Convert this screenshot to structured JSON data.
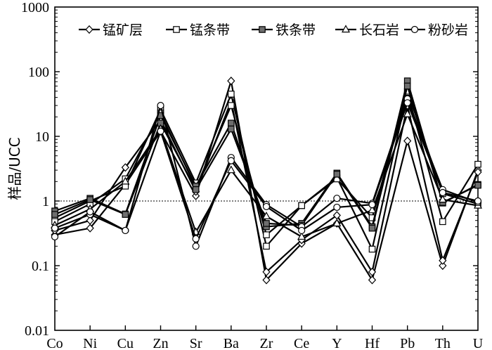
{
  "chart_data": {
    "type": "line",
    "title": "",
    "xlabel": "",
    "ylabel": "样品/UCC",
    "yscale": "log",
    "ylim": [
      0.01,
      1000
    ],
    "y_ticks": [
      "0.01",
      "0.1",
      "1",
      "10",
      "100",
      "1000"
    ],
    "reference_line": {
      "y": 1,
      "style": "dotted"
    },
    "categories": [
      "Co",
      "Ni",
      "Cu",
      "Zn",
      "Sr",
      "Ba",
      "Zr",
      "Ce",
      "Y",
      "Hf",
      "Pb",
      "Th",
      "U"
    ],
    "legend_placement": "top",
    "series": [
      {
        "name": "锰矿层",
        "marker": "diamond",
        "lines": [
          [
            0.3,
            0.38,
            1.8,
            12,
            1.2,
            72,
            0.06,
            0.22,
            0.45,
            0.06,
            8.5,
            0.1,
            3.0
          ],
          [
            0.35,
            0.5,
            3.3,
            18,
            1.4,
            35,
            0.08,
            0.25,
            0.6,
            0.08,
            30,
            0.12,
            2.8
          ]
        ]
      },
      {
        "name": "锰条带",
        "marker": "square-open",
        "lines": [
          [
            0.55,
            1.0,
            1.7,
            26,
            1.9,
            45,
            0.2,
            0.85,
            2.3,
            0.18,
            48,
            0.48,
            3.7
          ],
          [
            0.48,
            0.9,
            2.2,
            23,
            1.6,
            30,
            0.3,
            0.85,
            2.2,
            0.55,
            50,
            1.3,
            0.9
          ]
        ]
      },
      {
        "name": "铁条带",
        "marker": "square-filled",
        "lines": [
          [
            0.7,
            1.1,
            0.63,
            21,
            1.7,
            16,
            0.4,
            0.45,
            2.7,
            0.4,
            72,
            0.93,
            1.8
          ],
          [
            0.62,
            1.05,
            0.62,
            16,
            1.5,
            13,
            0.45,
            0.42,
            2.6,
            0.38,
            60,
            0.95,
            1.75
          ]
        ]
      },
      {
        "name": "长石岩",
        "marker": "triangle",
        "lines": [
          [
            0.42,
            0.75,
            2.0,
            13,
            0.33,
            3.0,
            0.58,
            0.28,
            0.45,
            0.72,
            22,
            1.05,
            0.85
          ]
        ]
      },
      {
        "name": "粉砂岩",
        "marker": "circle",
        "lines": [
          [
            0.38,
            0.62,
            0.35,
            30,
            0.2,
            4.7,
            0.88,
            0.4,
            1.1,
            0.92,
            38,
            1.5,
            0.95
          ],
          [
            0.28,
            0.68,
            0.35,
            12,
            0.26,
            4.2,
            0.82,
            0.35,
            0.8,
            0.88,
            33,
            1.35,
            1.0
          ]
        ]
      }
    ]
  }
}
